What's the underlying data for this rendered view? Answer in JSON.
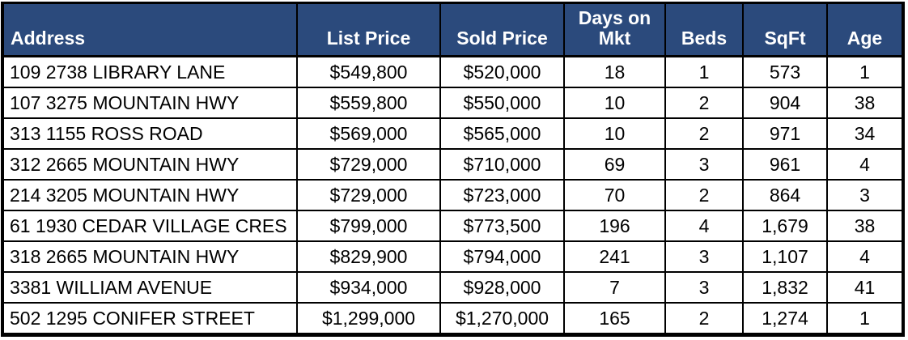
{
  "colors": {
    "header_bg": "#2B4A7C",
    "header_text": "#FFFFFF",
    "grid": "#000000",
    "cell_text": "#000000"
  },
  "table": {
    "columns": [
      {
        "key": "address",
        "label": "Address",
        "align": "left"
      },
      {
        "key": "list_price",
        "label": "List Price",
        "align": "center"
      },
      {
        "key": "sold_price",
        "label": "Sold Price",
        "align": "center"
      },
      {
        "key": "days_on_mkt",
        "label": "Days on Mkt",
        "align": "center"
      },
      {
        "key": "beds",
        "label": "Beds",
        "align": "center"
      },
      {
        "key": "sqft",
        "label": "SqFt",
        "align": "center"
      },
      {
        "key": "age",
        "label": "Age",
        "align": "center"
      }
    ],
    "rows": [
      [
        "109 2738 LIBRARY LANE",
        "$549,800",
        "$520,000",
        "18",
        "1",
        "573",
        "1"
      ],
      [
        "107 3275 MOUNTAIN HWY",
        "$559,800",
        "$550,000",
        "10",
        "2",
        "904",
        "38"
      ],
      [
        "313 1155 ROSS ROAD",
        "$569,000",
        "$565,000",
        "10",
        "2",
        "971",
        "34"
      ],
      [
        "312 2665 MOUNTAIN HWY",
        "$729,000",
        "$710,000",
        "69",
        "3",
        "961",
        "4"
      ],
      [
        "214 3205 MOUNTAIN HWY",
        "$729,000",
        "$723,000",
        "70",
        "2",
        "864",
        "3"
      ],
      [
        "61 1930 CEDAR VILLAGE CRES",
        "$799,000",
        "$773,500",
        "196",
        "4",
        "1,679",
        "38"
      ],
      [
        "318 2665 MOUNTAIN HWY",
        "$829,900",
        "$794,000",
        "241",
        "3",
        "1,107",
        "4"
      ],
      [
        "3381 WILLIAM AVENUE",
        "$934,000",
        "$928,000",
        "7",
        "3",
        "1,832",
        "41"
      ],
      [
        "502 1295 CONIFER STREET",
        "$1,299,000",
        "$1,270,000",
        "165",
        "2",
        "1,274",
        "1"
      ]
    ]
  }
}
